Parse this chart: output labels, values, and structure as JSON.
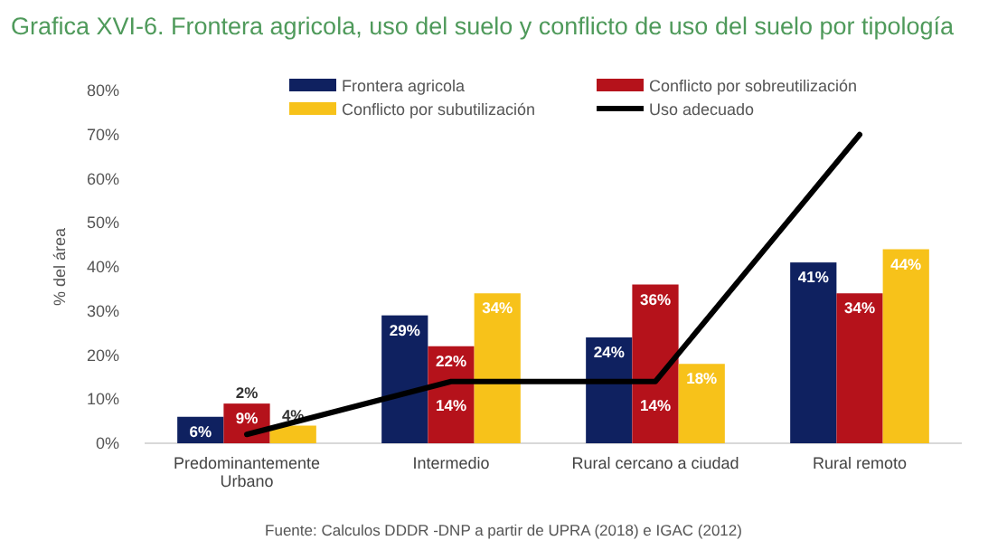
{
  "chart_data": {
    "type": "bar",
    "title": "Grafica XVI-6. Frontera agricola, uso del suelo y conflicto de uso del suelo por tipología",
    "ylabel": "% del área",
    "categories": [
      "Predominantemente Urbano",
      "Intermedio",
      "Rural cercano a ciudad",
      "Rural remoto"
    ],
    "series": [
      {
        "name": "Frontera agricola",
        "color": "#0f2160",
        "values": [
          6,
          29,
          24,
          41
        ],
        "value_labels": [
          "6%",
          "29%",
          "24%",
          "41%"
        ]
      },
      {
        "name": "Conflicto por sobreutilización",
        "color": "#b5121b",
        "values": [
          9,
          22,
          36,
          34
        ],
        "value_labels": [
          "9%",
          "22%",
          "36%",
          "34%"
        ]
      },
      {
        "name": "Conflicto por subutilización",
        "color": "#f7c21a",
        "values": [
          4,
          34,
          18,
          44
        ],
        "value_labels": [
          "4%",
          "34%",
          "18%",
          "44%"
        ]
      },
      {
        "name": "Uso adecuado",
        "type": "line",
        "color": "#000000",
        "values": [
          2,
          14,
          14,
          70
        ],
        "value_labels": [
          "2%",
          "14%",
          "14%",
          null
        ]
      }
    ],
    "ylim": [
      0,
      80
    ],
    "yticks": [
      {
        "value": 0,
        "label": "0%"
      },
      {
        "value": 10,
        "label": "10%"
      },
      {
        "value": 20,
        "label": "20%"
      },
      {
        "value": 30,
        "label": "30%"
      },
      {
        "value": 40,
        "label": "40%"
      },
      {
        "value": 50,
        "label": "50%"
      },
      {
        "value": 60,
        "label": "60%"
      },
      {
        "value": 70,
        "label": "70%"
      },
      {
        "value": 80,
        "label": "80%"
      }
    ],
    "grid": false,
    "legend": "top",
    "annotations": [
      "Fuente: Calculos DDDR -DNP a partir de UPRA (2018) e IGAC (2012)"
    ]
  }
}
